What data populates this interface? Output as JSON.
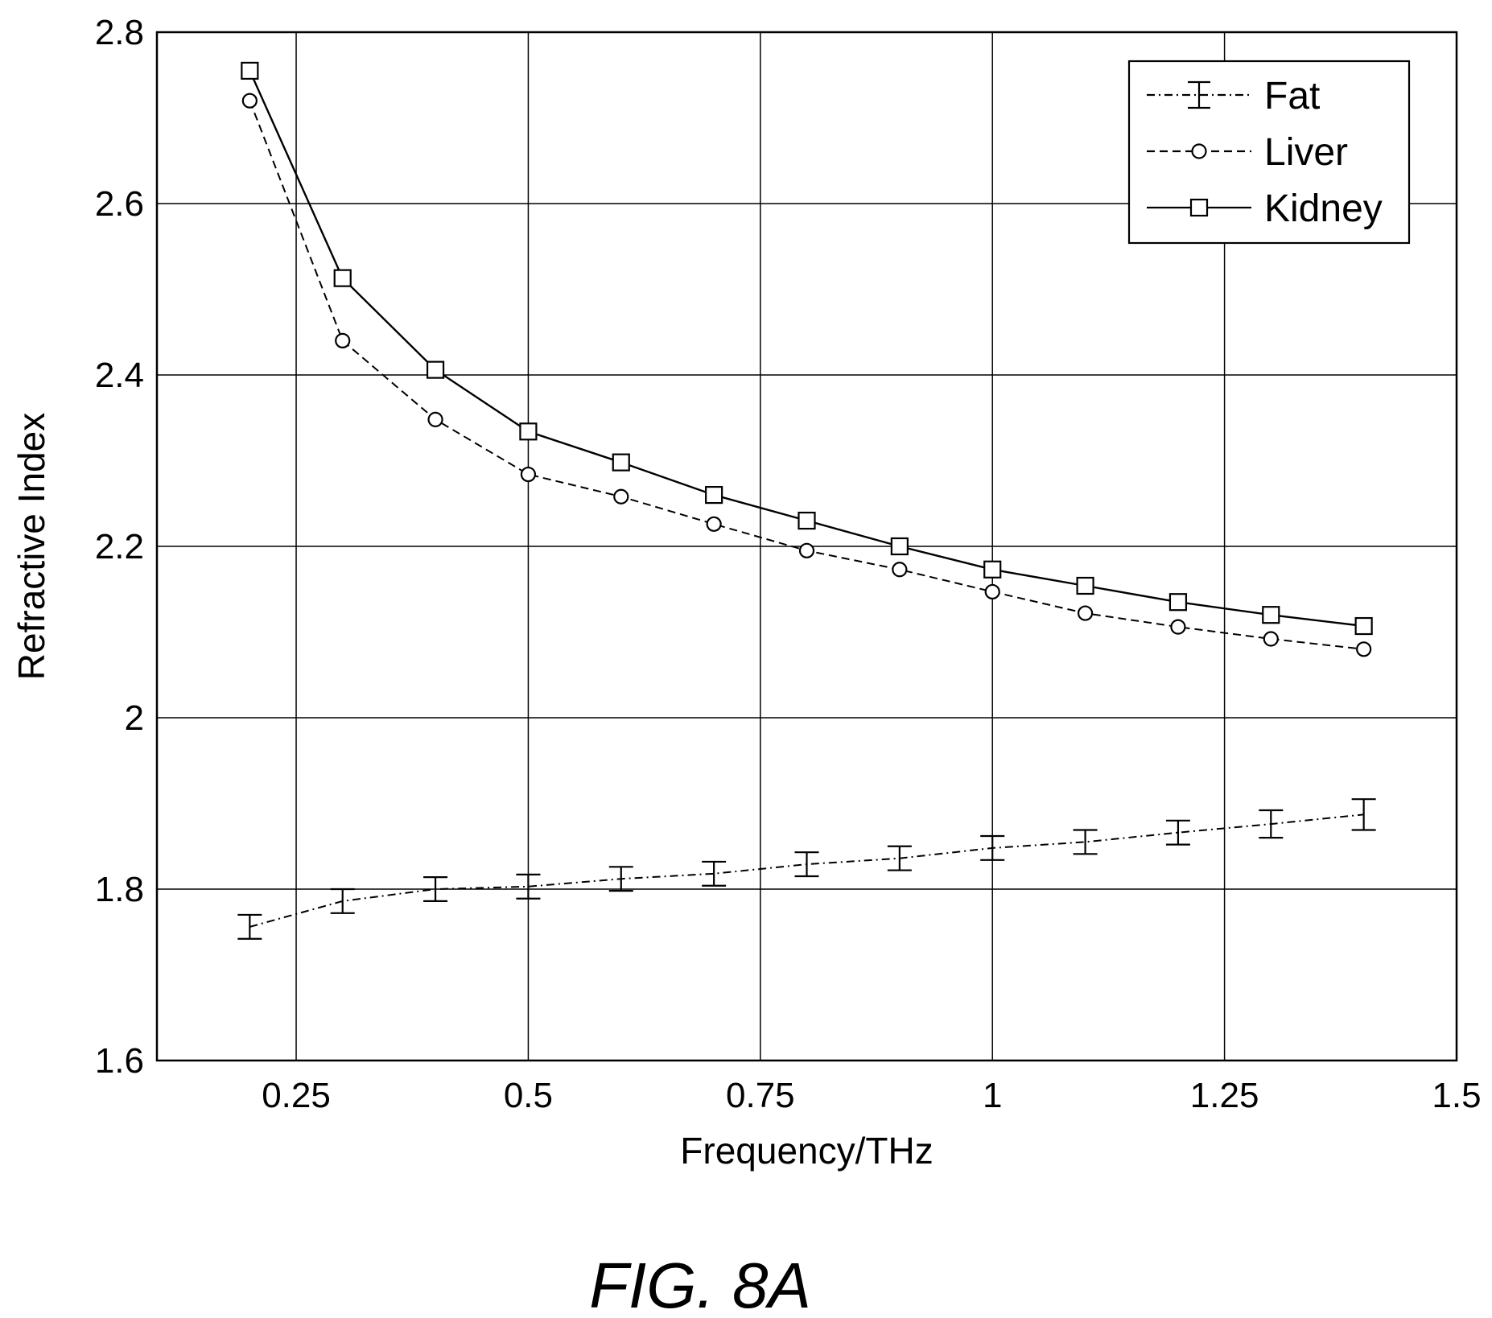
{
  "chart_data": {
    "type": "line",
    "xlabel": "Frequency/THz",
    "ylabel": "Refractive Index",
    "xlim": [
      0.1,
      1.5
    ],
    "ylim": [
      1.6,
      2.8
    ],
    "xticks": [
      0.25,
      0.5,
      0.75,
      1,
      1.25,
      1.5
    ],
    "xtick_labels": [
      "0.25",
      "0.5",
      "0.75",
      "1",
      "1.25",
      "1.5"
    ],
    "yticks": [
      1.6,
      1.8,
      2,
      2.2,
      2.4,
      2.6,
      2.8
    ],
    "ytick_labels": [
      "1.6",
      "1.8",
      "2",
      "2.2",
      "2.4",
      "2.6",
      "2.8"
    ],
    "grid": true,
    "legend_position": "top-right",
    "x": [
      0.2,
      0.3,
      0.4,
      0.5,
      0.6,
      0.7,
      0.8,
      0.9,
      1.0,
      1.1,
      1.2,
      1.3,
      1.4
    ],
    "series": [
      {
        "name": "Fat",
        "style": "dash-dot",
        "marker": "errorbar",
        "values": [
          1.756,
          1.786,
          1.8,
          1.803,
          1.812,
          1.818,
          1.829,
          1.836,
          1.848,
          1.855,
          1.866,
          1.876,
          1.887
        ],
        "errors": [
          0.014,
          0.014,
          0.014,
          0.014,
          0.014,
          0.014,
          0.014,
          0.014,
          0.014,
          0.014,
          0.014,
          0.016,
          0.018
        ]
      },
      {
        "name": "Liver",
        "style": "dashed",
        "marker": "circle",
        "values": [
          2.72,
          2.44,
          2.348,
          2.284,
          2.258,
          2.226,
          2.195,
          2.173,
          2.147,
          2.122,
          2.106,
          2.092,
          2.08
        ]
      },
      {
        "name": "Kidney",
        "style": "solid",
        "marker": "square",
        "values": [
          2.755,
          2.513,
          2.406,
          2.334,
          2.298,
          2.26,
          2.23,
          2.2,
          2.173,
          2.154,
          2.135,
          2.12,
          2.107
        ]
      }
    ]
  },
  "caption": "FIG. 8A"
}
